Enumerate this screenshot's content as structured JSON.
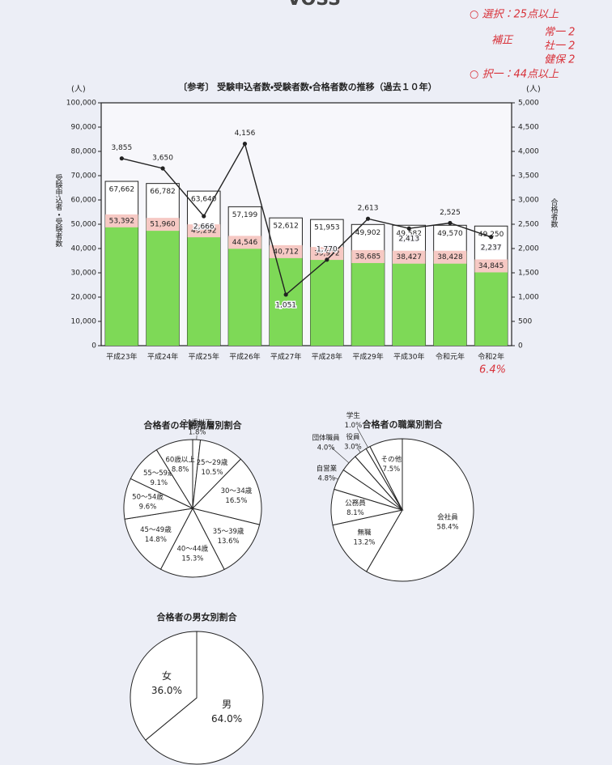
{
  "logo": "VOSS",
  "handwritten_notes": [
    "○ 選択：25点以上",
    "補正",
    "常一 2",
    "社一 2",
    "健保 2",
    "○ 択一：44点以上",
    "6.4%"
  ],
  "chart_data": [
    {
      "type": "bar-line",
      "title": "〔参考〕 受験申込者数・受験者数・合格者数の推移（過去１０年）",
      "y_unit": "(人)",
      "y2_unit": "(人)",
      "y_label": "受験申込者・受験者数",
      "y2_label": "合格者数",
      "categories": [
        "平成23年",
        "平成24年",
        "平成25年",
        "平成26年",
        "平成27年",
        "平成28年",
        "平成29年",
        "平成30年",
        "令和元年",
        "令和2年"
      ],
      "series": [
        {
          "name": "受験申込者数",
          "kind": "bar",
          "color": "#ffffff",
          "values": [
            67662,
            66782,
            63640,
            57199,
            52612,
            51953,
            49902,
            49582,
            49570,
            49250
          ],
          "value_labels": [
            "67,662",
            "66,782",
            "63,640",
            "57,199",
            "52,612",
            "51,953",
            "49,902",
            "49,582",
            "49,570",
            "49,250"
          ]
        },
        {
          "name": "受験者数",
          "kind": "bar",
          "color": "#7ed957",
          "values": [
            53392,
            51960,
            49292,
            44546,
            40712,
            39972,
            38685,
            38427,
            38428,
            34845
          ],
          "value_labels": [
            "53,392",
            "51,960",
            "49,292",
            "44,546",
            "40,712",
            "39,972",
            "38,685",
            "38,427",
            "38,428",
            "34,845"
          ]
        },
        {
          "name": "合格者数",
          "kind": "line",
          "axis": "y2",
          "color": "#222222",
          "values": [
            3855,
            3650,
            2666,
            4156,
            1051,
            1770,
            2613,
            2413,
            2525,
            2237
          ],
          "value_labels": [
            "3,855",
            "3,650",
            "2,666",
            "4,156",
            "1,051",
            "1,770",
            "2,613",
            "2,413",
            "2,525",
            "2,237"
          ]
        }
      ],
      "ylim": [
        0,
        100000
      ],
      "yticks": [
        0,
        {
          "value": 10000,
          "label": "10,000"
        },
        {
          "value": 20000,
          "label": "20,000"
        },
        {
          "value": 30000,
          "label": "30,000"
        },
        {
          "value": 40000,
          "label": "40,000"
        },
        {
          "value": 50000,
          "label": "50,000"
        },
        {
          "value": 60000,
          "label": "60,000"
        },
        {
          "value": 70000,
          "label": "70,000"
        },
        {
          "value": 80000,
          "label": "80,000"
        },
        {
          "value": 90000,
          "label": "90,000"
        },
        {
          "value": 100000,
          "label": "100,000"
        }
      ],
      "y2lim": [
        0,
        5000
      ],
      "y2ticks": [
        0,
        500,
        {
          "value": 1000,
          "label": "1,000"
        },
        {
          "value": 1500,
          "label": "1,500"
        },
        {
          "value": 2000,
          "label": "2,000"
        },
        {
          "value": 2500,
          "label": "2,500"
        },
        {
          "value": 3000,
          "label": "3,000"
        },
        {
          "value": 3500,
          "label": "3,500"
        },
        {
          "value": 4000,
          "label": "4,000"
        },
        {
          "value": 4500,
          "label": "4,500"
        },
        {
          "value": 5000,
          "label": "5,000"
        }
      ],
      "grid": false
    },
    {
      "type": "pie",
      "title": "合格者の年齢階層別割合",
      "categories": [
        "24歳以下",
        "25～29歳",
        "30～34歳",
        "35～39歳",
        "40～44歳",
        "45～49歳",
        "50～54歳",
        "55～59歳",
        "60歳以上"
      ],
      "values": [
        1.8,
        10.5,
        16.5,
        13.6,
        15.3,
        14.8,
        9.6,
        9.1,
        8.8
      ],
      "value_labels": [
        "1.8%",
        "10.5%",
        "16.5%",
        "13.6%",
        "15.3%",
        "14.8%",
        "9.6%",
        "9.1%",
        "8.8%"
      ],
      "color": "#ffffff"
    },
    {
      "type": "pie",
      "title": "合格者の職業別割合",
      "categories": [
        "会社員",
        "無職",
        "公務員",
        "自営業",
        "団体職員",
        "役員",
        "学生",
        "その他"
      ],
      "values": [
        58.4,
        13.2,
        8.1,
        4.8,
        4.0,
        3.0,
        1.0,
        7.5
      ],
      "value_labels": [
        "58.4%",
        "13.2%",
        "8.1%",
        "4.8%",
        "4.0%",
        "3.0%",
        "1.0%",
        "7.5%"
      ],
      "color": "#ffffff"
    },
    {
      "type": "pie",
      "title": "合格者の男女別割合",
      "categories": [
        "男",
        "女"
      ],
      "values": [
        64.0,
        36.0
      ],
      "value_labels": [
        "64.0%",
        "36.0%"
      ],
      "color": "#ffffff"
    }
  ]
}
